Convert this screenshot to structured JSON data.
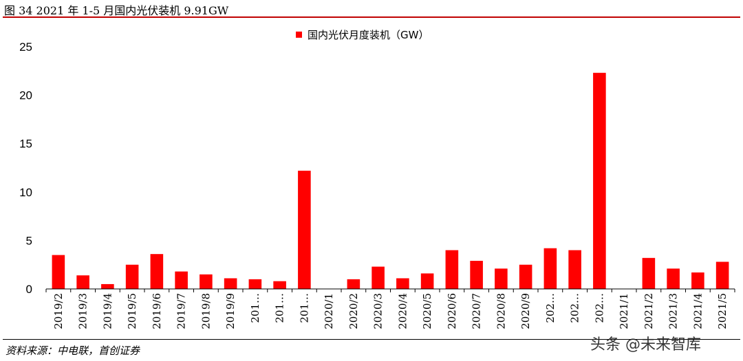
{
  "title": "图 34 2021 年 1-5 月国内光伏装机 9.91GW",
  "source": "资料来源：中电联，首创证券",
  "watermark": "头条 @未来智库",
  "colors": {
    "bar": "#ff0000",
    "title_rule": "#c00000",
    "axis": "#000000"
  },
  "chart_data": {
    "type": "bar",
    "title": "",
    "xlabel": "",
    "ylabel": "",
    "ylim": [
      0,
      25
    ],
    "yticks": [
      0,
      5,
      10,
      15,
      20,
      25
    ],
    "grid": false,
    "legend_position": "top-center",
    "categories": [
      "2019/2",
      "2019/3",
      "2019/4",
      "2019/5",
      "2019/6",
      "2019/7",
      "2019/8",
      "2019/9",
      "201…",
      "201…",
      "201…",
      "2020/1",
      "2020/2",
      "2020/3",
      "2020/4",
      "2020/5",
      "2020/6",
      "2020/7",
      "2020/8",
      "2020/9",
      "202…",
      "202…",
      "202…",
      "2021/1",
      "2021/2",
      "2021/3",
      "2021/4",
      "2021/5"
    ],
    "series": [
      {
        "name": "国内光伏月度装机（GW）",
        "color": "#ff0000",
        "values": [
          3.5,
          1.4,
          0.5,
          2.5,
          3.6,
          1.8,
          1.5,
          1.1,
          1.0,
          0.8,
          12.2,
          0,
          1.0,
          2.3,
          1.1,
          1.6,
          4.0,
          2.9,
          2.1,
          2.5,
          4.2,
          4.0,
          22.3,
          0,
          3.2,
          2.1,
          1.7,
          2.8
        ]
      }
    ]
  }
}
